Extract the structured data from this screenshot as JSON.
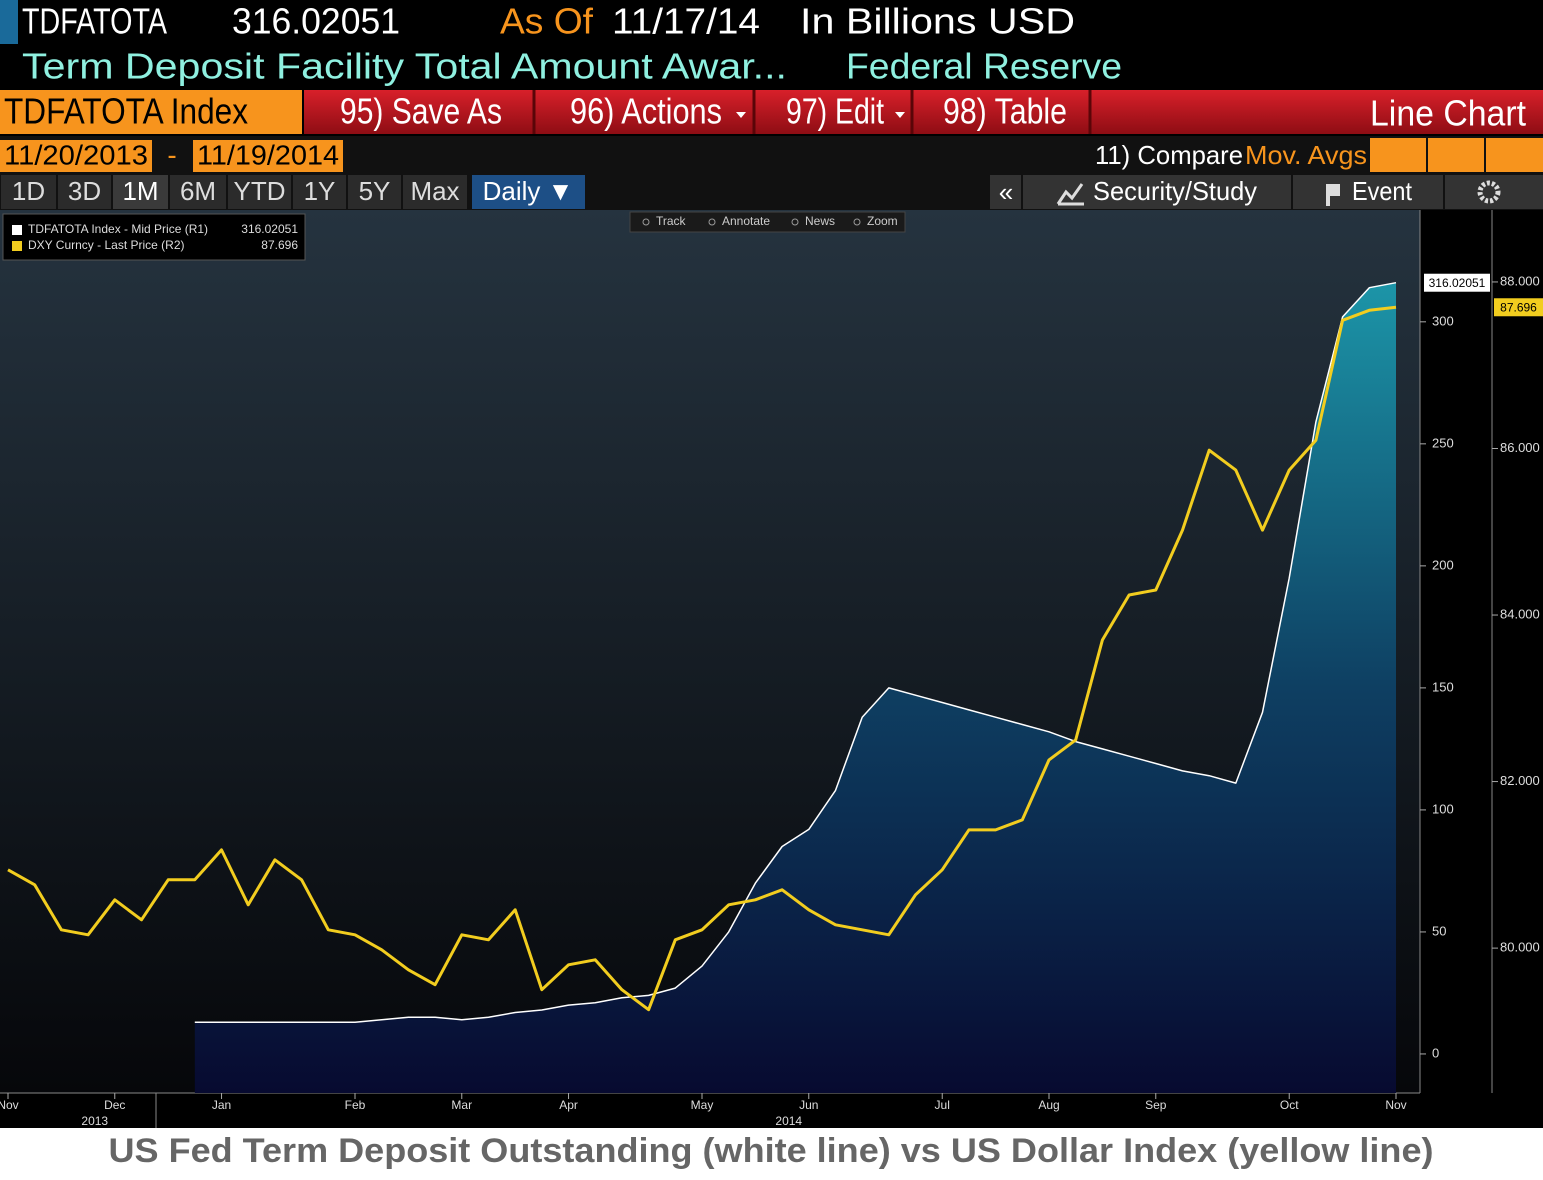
{
  "header": {
    "ticker": "TDFATOTA",
    "as_of_label": "As Of",
    "as_of": "11/17/14",
    "units": "In Billions USD",
    "description": "Term Deposit Facility Total Amount Awar...",
    "source": "Federal Reserve"
  },
  "toolbar": {
    "security": "TDFATOTA Index",
    "buttons": [
      "95) Save As",
      "96) Actions",
      "97) Edit",
      "98) Table"
    ],
    "view": "Line Chart"
  },
  "range": {
    "start": "11/20/2013",
    "separator": "-",
    "end": "11/19/2014",
    "compare": "11) Compare",
    "mov_avgs": "Mov. Avgs"
  },
  "periods": [
    "1D",
    "3D",
    "1M",
    "6M",
    "YTD",
    "1Y",
    "5Y",
    "Max"
  ],
  "frequency": "Daily ▼",
  "panel": {
    "collapse": "«",
    "study": "Security/Study",
    "event": "Event"
  },
  "chart_tools": [
    "Track",
    "Annotate",
    "News",
    "Zoom"
  ],
  "chart_data": {
    "type": "line",
    "categories": [
      "Nov",
      null,
      null,
      null,
      "Dec",
      null,
      null,
      null,
      "Jan",
      null,
      null,
      null,
      null,
      "Feb",
      null,
      null,
      null,
      "Mar",
      null,
      null,
      null,
      "Apr",
      null,
      null,
      null,
      null,
      "May",
      null,
      null,
      null,
      "Jun",
      null,
      null,
      null,
      null,
      "Jul",
      null,
      null,
      null,
      "Aug",
      null,
      null,
      null,
      "Sep",
      null,
      null,
      null,
      null,
      "Oct",
      null,
      null,
      null,
      "Nov"
    ],
    "year_labels": [
      null,
      null,
      null,
      null,
      "2013",
      null,
      null,
      null,
      null,
      null,
      null,
      null,
      null,
      null,
      null,
      null,
      null,
      null,
      null,
      null,
      null,
      null,
      null,
      null,
      null,
      null,
      null,
      null,
      null,
      null,
      "2014",
      null,
      null,
      null,
      null,
      null,
      null,
      null,
      null,
      null,
      null,
      null,
      null,
      null,
      null,
      null,
      null,
      null,
      null,
      null,
      null,
      null,
      null
    ],
    "series": [
      {
        "name": "TDFATOTA Index - Mid Price (R1)",
        "color": "#ffffff",
        "values": [
          null,
          null,
          null,
          null,
          null,
          null,
          null,
          13,
          13,
          13,
          13,
          13,
          13,
          13,
          14,
          15,
          15,
          14,
          15,
          17,
          18,
          20,
          21,
          23,
          24,
          27,
          36,
          50,
          70,
          85,
          92,
          108,
          138,
          150,
          147,
          144,
          141,
          138,
          135,
          132,
          128,
          125,
          122,
          119,
          116,
          114,
          111,
          140,
          195,
          259,
          302,
          314,
          316.02051
        ]
      },
      {
        "name": "DXY Curncy - Last Price (R2)",
        "color": "#f2cd1f",
        "axis": "y2",
        "values": [
          80.94,
          80.76,
          80.22,
          80.16,
          80.58,
          80.34,
          80.82,
          80.82,
          81.18,
          80.52,
          81.06,
          80.82,
          80.22,
          80.16,
          79.98,
          79.74,
          79.56,
          80.16,
          80.1,
          80.46,
          79.5,
          79.8,
          79.86,
          79.5,
          79.26,
          80.1,
          80.22,
          80.52,
          80.58,
          80.7,
          80.46,
          80.28,
          80.22,
          80.16,
          80.64,
          80.94,
          81.42,
          81.42,
          81.54,
          82.26,
          82.5,
          83.7,
          84.24,
          84.3,
          85.02,
          85.98,
          85.74,
          85.02,
          85.74,
          86.1,
          87.54,
          87.66,
          87.696
        ]
      }
    ],
    "ylim": [
      -16,
      345
    ],
    "yticks": [
      0,
      50,
      100,
      150,
      200,
      250,
      300
    ],
    "y2lim": [
      78.26,
      88.84
    ],
    "y2ticks": [
      {
        "value": 80,
        "label": "80.000"
      },
      {
        "value": 82,
        "label": "82.000"
      },
      {
        "value": 84,
        "label": "84.000"
      },
      {
        "value": 86,
        "label": "86.000"
      },
      {
        "value": 88,
        "label": "88.000"
      }
    ],
    "caption": "US Fed Term Deposit Outstanding (white line) vs US Dollar Index (yellow line)"
  }
}
